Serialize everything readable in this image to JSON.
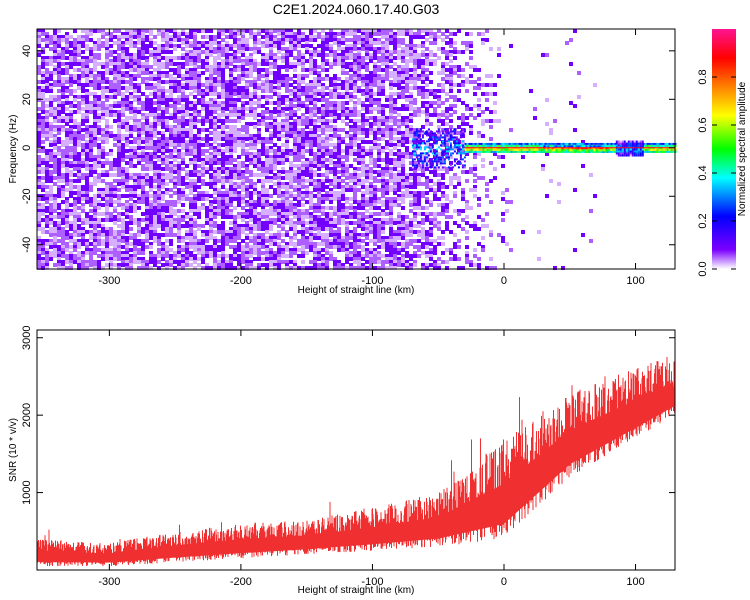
{
  "title": "C2E1.2024.060.17.40.G03",
  "chart_data": [
    {
      "type": "heatmap",
      "xlabel": "Height of straight line (km)",
      "ylabel": "Frequency (Hz)",
      "xlim": [
        -355,
        130
      ],
      "ylim": [
        -50,
        49
      ],
      "xticks": [
        -300,
        -200,
        -100,
        0,
        100
      ],
      "yticks": [
        -40,
        -20,
        0,
        20,
        40
      ],
      "colorbar": {
        "label": "Normalized spectral amplitude",
        "range": [
          0.0,
          1.0
        ],
        "ticks": [
          0.0,
          0.2,
          0.4,
          0.6,
          0.8
        ],
        "colormap": [
          "#ffffff",
          "#7b00ff",
          "#0000ff",
          "#00ffff",
          "#00ff00",
          "#ffff00",
          "#ff8000",
          "#ff0000",
          "#ff1493"
        ]
      },
      "regions": [
        {
          "x": [
            -355,
            -70
          ],
          "y": [
            -50,
            49
          ],
          "amplitude": 0.05,
          "note": "noise"
        },
        {
          "x": [
            -70,
            -30
          ],
          "y": [
            -8,
            8
          ],
          "amplitude": 0.3
        },
        {
          "x": [
            -30,
            130
          ],
          "y": [
            -2,
            2
          ],
          "amplitude": 0.7
        },
        {
          "x": [
            30,
            80
          ],
          "y": [
            -1,
            1
          ],
          "amplitude": 0.85
        },
        {
          "x": [
            85,
            105
          ],
          "y": [
            -3,
            3
          ],
          "amplitude": 0.3
        }
      ]
    },
    {
      "type": "area",
      "xlabel": "Height of straight line (km)",
      "ylabel": "SNR (10 * v/v)",
      "xlim": [
        -355,
        130
      ],
      "ylim": [
        0,
        3100
      ],
      "xticks": [
        -300,
        -200,
        -100,
        0,
        100
      ],
      "yticks": [
        1000,
        2000,
        3000
      ],
      "color": "#f03030",
      "envelope": {
        "x": [
          -355,
          -300,
          -250,
          -200,
          -150,
          -100,
          -50,
          0,
          50,
          100,
          130
        ],
        "upper": [
          400,
          350,
          500,
          600,
          650,
          800,
          1000,
          1700,
          2300,
          2600,
          2800
        ],
        "lower": [
          50,
          50,
          100,
          150,
          200,
          250,
          300,
          400,
          1200,
          1700,
          2000
        ]
      }
    }
  ]
}
